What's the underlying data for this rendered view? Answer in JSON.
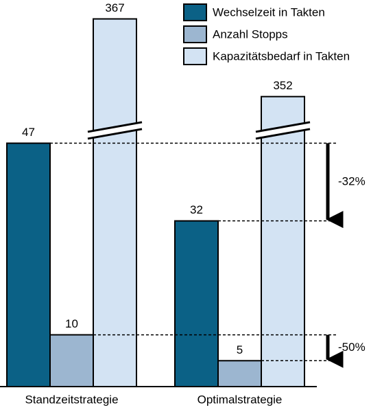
{
  "chart_data": {
    "type": "bar",
    "categories": [
      "Standzeitstrategie",
      "Optimalstrategie"
    ],
    "series": [
      {
        "name": "Wechselzeit in Takten",
        "color": "#0b6186",
        "values": [
          47,
          32
        ]
      },
      {
        "name": "Anzahl Stopps",
        "color": "#9cb6d0",
        "values": [
          10,
          5
        ]
      },
      {
        "name": "Kapazitätsbedarf in Takten",
        "color": "#d3e3f3",
        "values": [
          367,
          352
        ]
      }
    ],
    "ylim": [
      0,
      368
    ],
    "y_break": [
      50,
      346
    ],
    "annotations": [
      "-32%",
      "-50%"
    ],
    "legend": "upper right"
  }
}
